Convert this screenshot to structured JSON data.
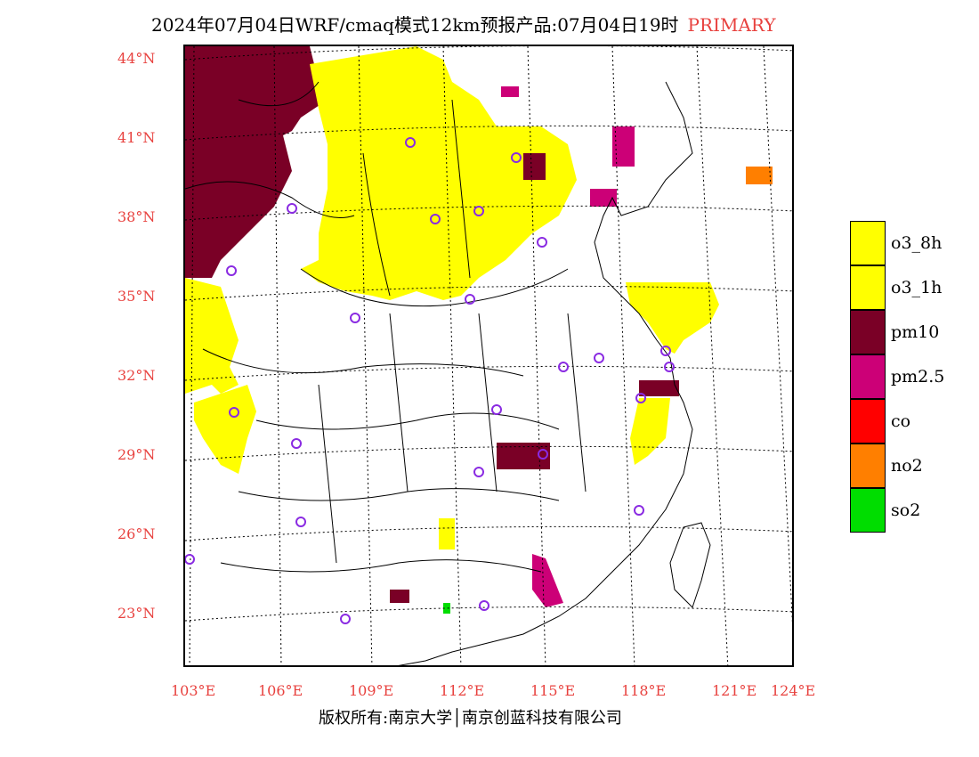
{
  "title": {
    "text": "2024年07月04日WRF/cmaq模式12km预报产品:07月04日19时",
    "tag": "PRIMARY"
  },
  "lat_labels": [
    "44°N",
    "41°N",
    "38°N",
    "35°N",
    "32°N",
    "29°N",
    "26°N",
    "23°N"
  ],
  "lon_labels": [
    "103°E",
    "106°E",
    "109°E",
    "112°E",
    "115°E",
    "118°E",
    "121°E",
    "124°E"
  ],
  "legend": [
    {
      "label": "o3_8h",
      "color": "#ffff00"
    },
    {
      "label": "o3_1h",
      "color": "#ffff00"
    },
    {
      "label": "pm10",
      "color": "#7a0026"
    },
    {
      "label": "pm2.5",
      "color": "#cc0077"
    },
    {
      "label": "co",
      "color": "#ff0000"
    },
    {
      "label": "no2",
      "color": "#ff7f00"
    },
    {
      "label": "so2",
      "color": "#00dd00"
    }
  ],
  "credit": "版权所有:南京大学│南京创蓝科技有限公司",
  "colors": {
    "label": "#e8423f",
    "station": "#8a2be2"
  }
}
